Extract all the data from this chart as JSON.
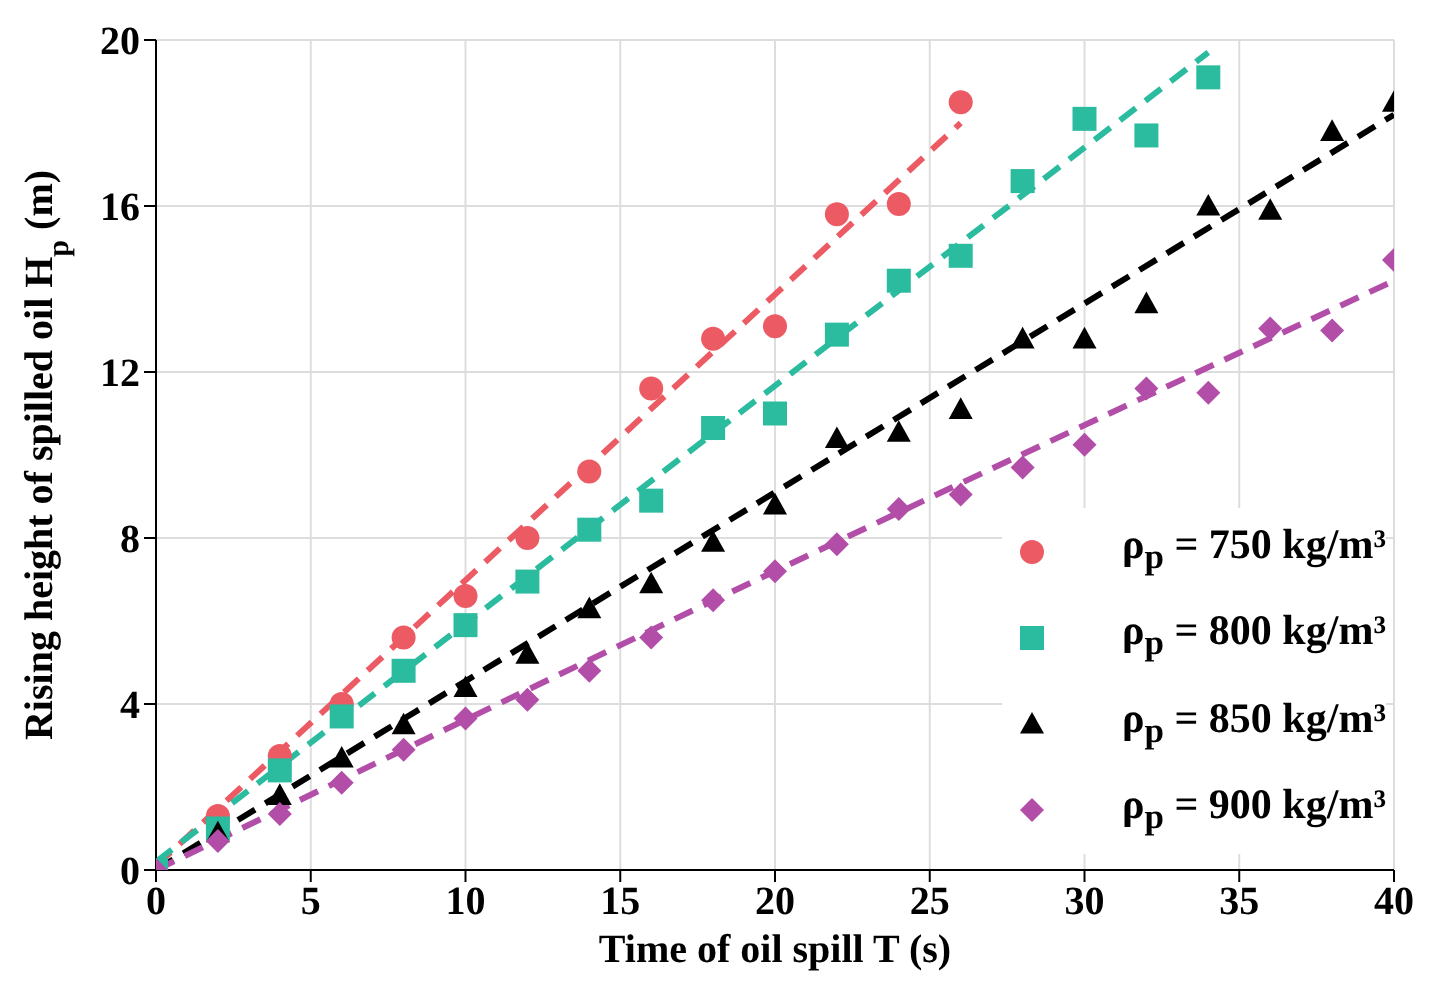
{
  "chart_data": {
    "type": "scatter",
    "xlabel": "Time of oil spill T (s)",
    "ylabel": "Rising height of spilled oil H$_{p}$ (m)",
    "xlim": [
      0,
      40
    ],
    "xticks": [
      0,
      5,
      10,
      15,
      20,
      25,
      30,
      35,
      40
    ],
    "ylim": [
      0,
      20
    ],
    "yticks": [
      0,
      4,
      8,
      12,
      16,
      20
    ],
    "grid": true,
    "legend": "bottom right",
    "series": [
      {
        "name": "ρ$_{p}$ = 750 kg/m³",
        "type": "scatter",
        "marker": "circle",
        "color": "#ec5a64",
        "x": [
          2,
          4,
          6,
          8,
          10,
          12,
          14,
          16,
          18,
          20,
          22,
          24,
          26
        ],
        "values": [
          1.3,
          2.75,
          4.0,
          5.6,
          6.6,
          8.0,
          9.6,
          11.6,
          12.8,
          13.1,
          15.8,
          16.05,
          18.5
        ]
      },
      {
        "name": "ρ$_{p}$ = 800 kg/m³",
        "type": "scatter",
        "marker": "square",
        "color": "#2bbb9f",
        "x": [
          0,
          2,
          4,
          6,
          8,
          10,
          12,
          14,
          16,
          18,
          20,
          22,
          24,
          26,
          28,
          30,
          32,
          34
        ],
        "values": [
          0,
          1.0,
          2.4,
          3.7,
          4.8,
          5.9,
          6.95,
          8.2,
          8.9,
          10.65,
          11.0,
          12.9,
          14.2,
          14.8,
          16.6,
          18.1,
          17.7,
          19.1
        ]
      },
      {
        "name": "ρ$_{p}$ = 850 kg/m³",
        "type": "scatter",
        "marker": "triangle",
        "color": "#000000",
        "x": [
          2,
          4,
          6,
          8,
          10,
          12,
          14,
          16,
          18,
          20,
          22,
          24,
          26,
          28,
          30,
          32,
          34,
          36,
          38,
          40
        ],
        "values": [
          0.9,
          1.8,
          2.7,
          3.5,
          4.4,
          5.2,
          6.3,
          6.9,
          7.9,
          8.8,
          10.4,
          10.55,
          11.1,
          12.8,
          12.8,
          13.65,
          16.0,
          15.9,
          17.8,
          18.5
        ]
      },
      {
        "name": "ρ$_{p}$ = 900 kg/m³",
        "type": "scatter",
        "marker": "diamond",
        "color": "#b24ea8",
        "x": [
          0,
          2,
          4,
          6,
          8,
          10,
          12,
          14,
          16,
          18,
          20,
          22,
          24,
          26,
          28,
          30,
          32,
          34,
          36,
          38,
          40
        ],
        "values": [
          0,
          0.7,
          1.35,
          2.1,
          2.9,
          3.65,
          4.1,
          4.8,
          5.6,
          6.5,
          7.2,
          7.85,
          8.7,
          9.05,
          9.7,
          10.25,
          11.6,
          11.5,
          13.05,
          13.0,
          14.7
        ]
      },
      {
        "type": "line",
        "line_style": "dashed",
        "color": "#ec5a64",
        "x": [
          0,
          26
        ],
        "values": [
          0.1,
          18.0
        ]
      },
      {
        "type": "line",
        "line_style": "dashed",
        "color": "#2bbb9f",
        "x": [
          0,
          34
        ],
        "values": [
          0.2,
          19.7
        ]
      },
      {
        "type": "line",
        "line_style": "dashed",
        "color": "#000000",
        "x": [
          0,
          40
        ],
        "values": [
          0,
          18.2
        ]
      },
      {
        "type": "line",
        "line_style": "dashed",
        "color": "#b24ea8",
        "x": [
          0,
          20,
          40
        ],
        "values": [
          0,
          7.2,
          14.2
        ]
      }
    ]
  }
}
